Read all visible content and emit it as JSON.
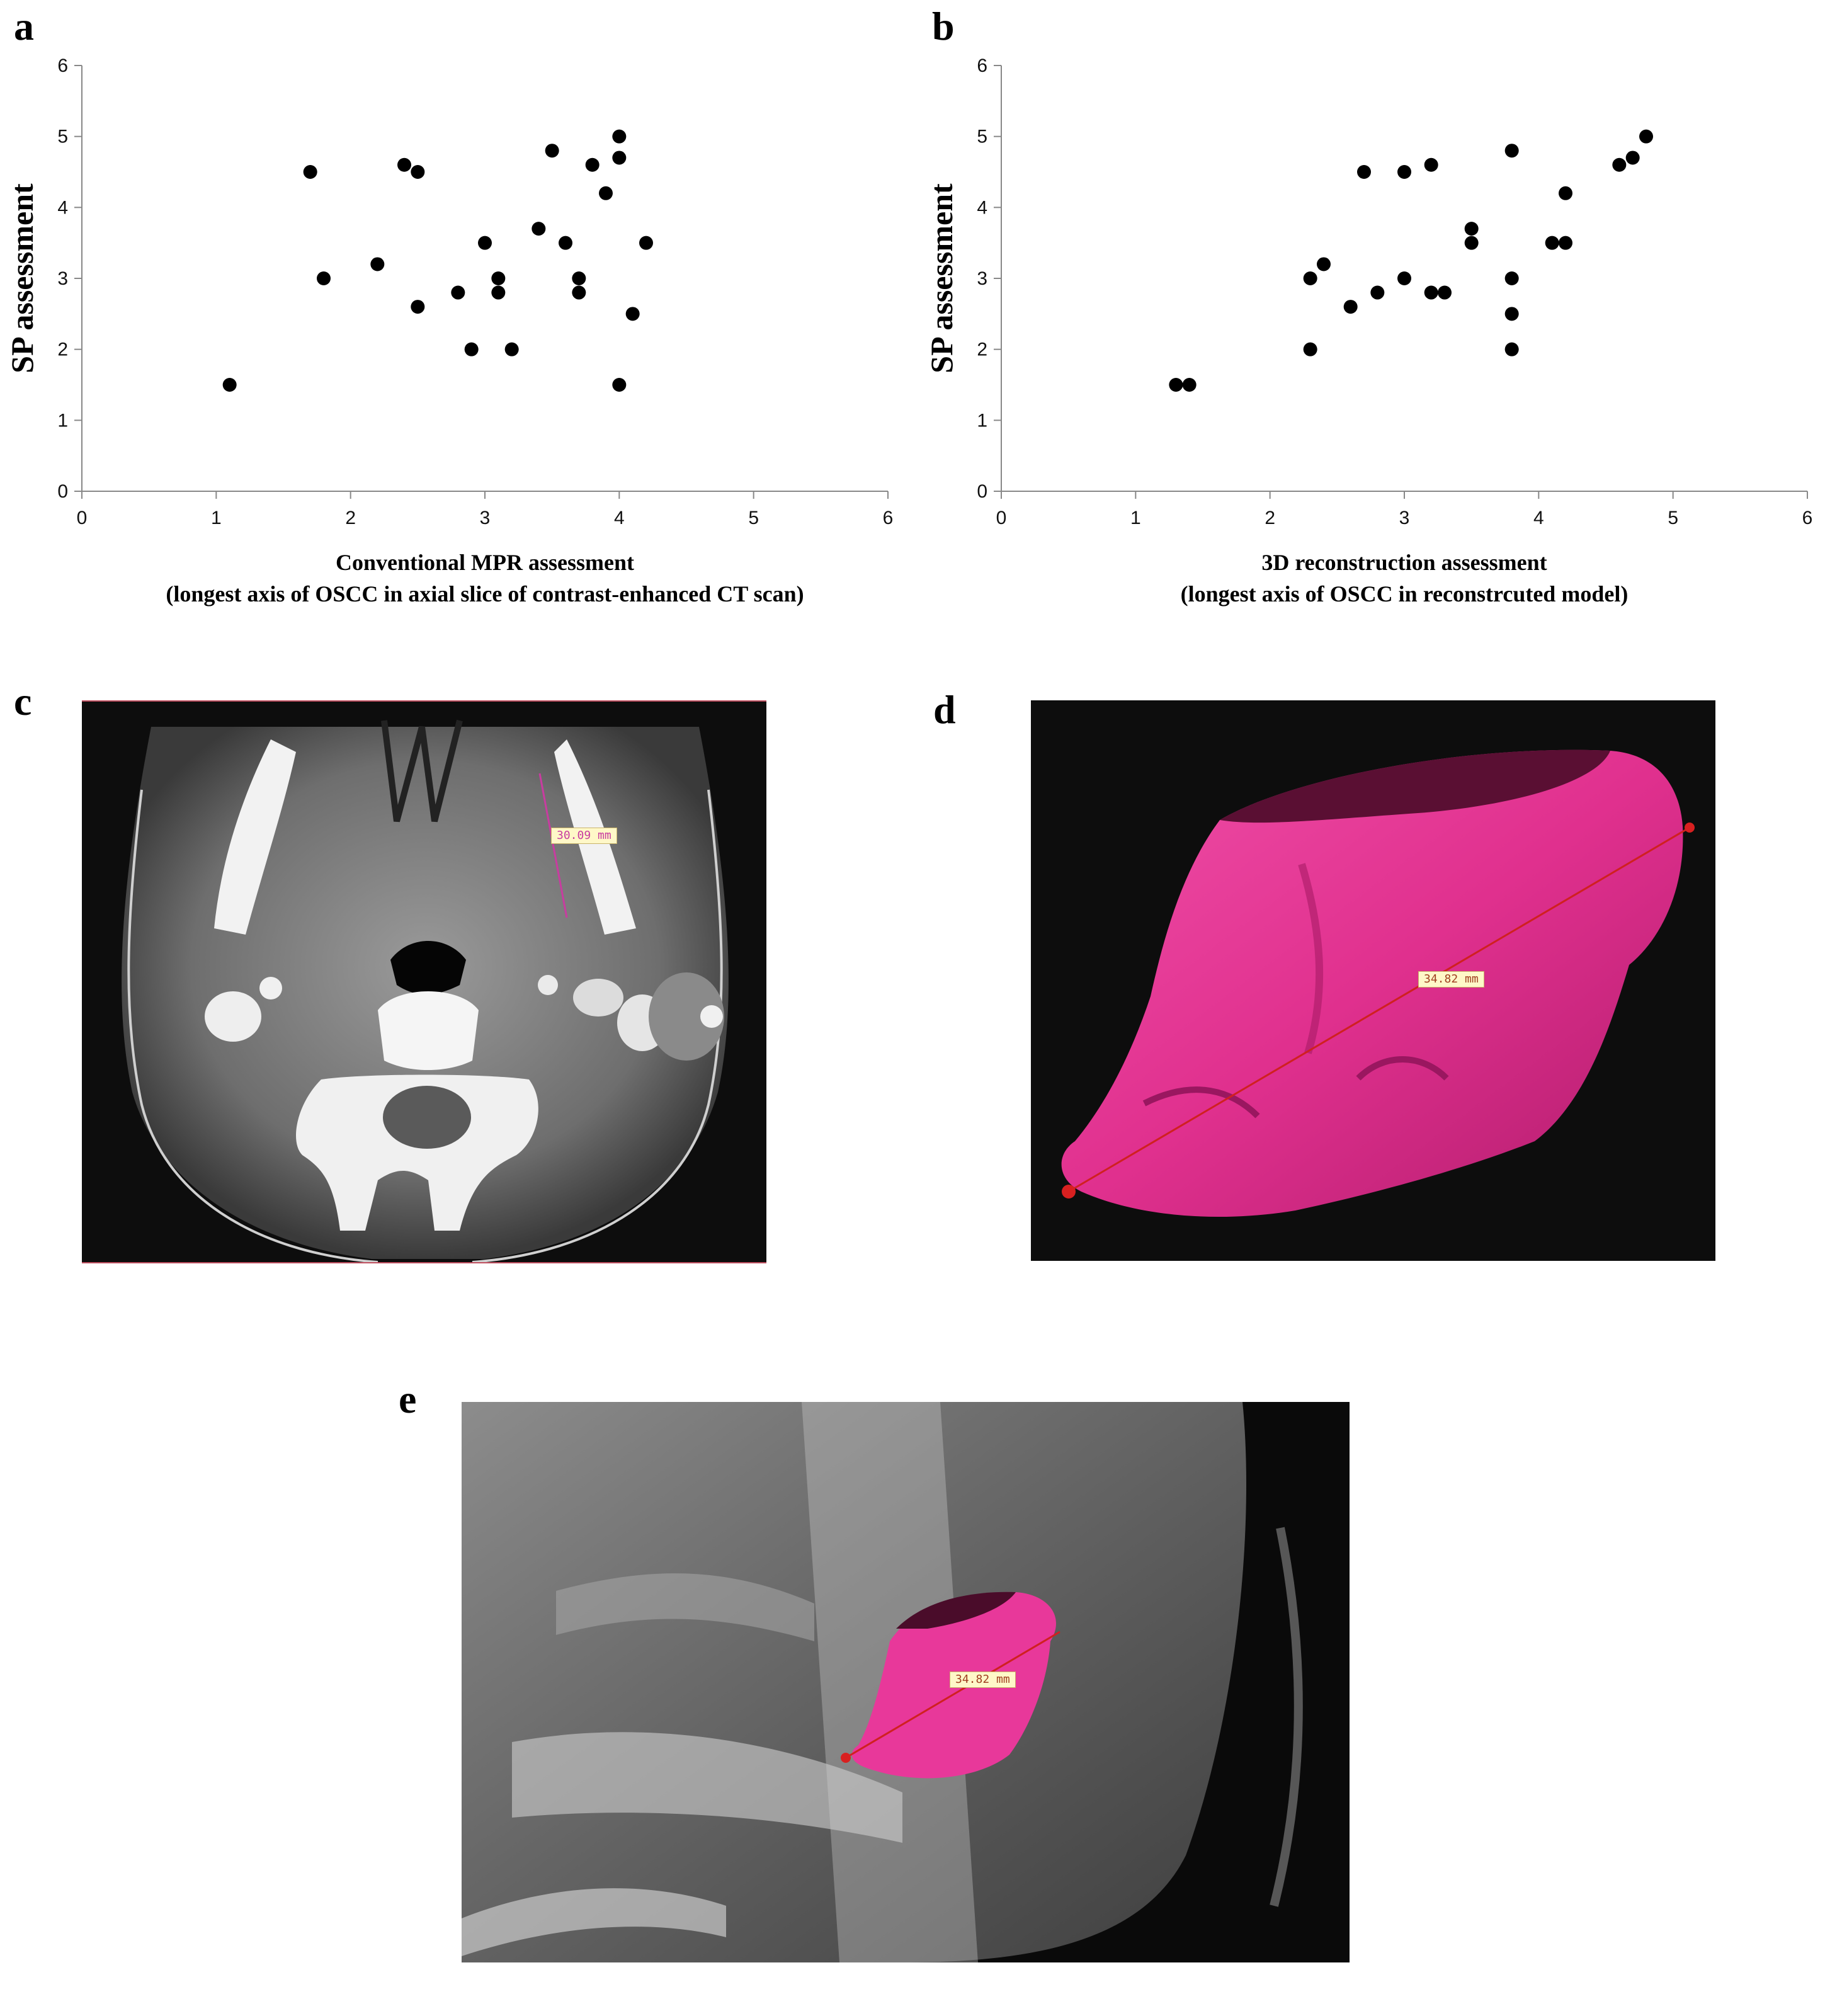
{
  "panels": {
    "a": {
      "letter": "a"
    },
    "b": {
      "letter": "b"
    },
    "c": {
      "letter": "c",
      "measurement": "30.09 mm",
      "measure_color": "#c83ca0"
    },
    "d": {
      "letter": "d",
      "measurement": "34.82 mm",
      "model_color": "#e8389a"
    },
    "e": {
      "letter": "e",
      "measurement": "34.82 mm",
      "model_color": "#e8389a"
    }
  },
  "chart_data": [
    {
      "type": "scatter",
      "panel": "a",
      "ylabel": "SP assessment",
      "xlabel_line1": "Conventional MPR assessment",
      "xlabel_line2": "(longest axis of OSCC in axial slice of contrast-enhanced CT scan)",
      "xlim": [
        0,
        6
      ],
      "ylim": [
        0,
        6
      ],
      "xticks": [
        0,
        1,
        2,
        3,
        4,
        5,
        6
      ],
      "yticks": [
        0,
        1,
        2,
        3,
        4,
        5,
        6
      ],
      "grid": false,
      "marker_color": "#000000",
      "points": [
        [
          1.1,
          1.5
        ],
        [
          1.7,
          4.5
        ],
        [
          1.8,
          3.0
        ],
        [
          2.2,
          3.2
        ],
        [
          2.4,
          4.6
        ],
        [
          2.5,
          4.5
        ],
        [
          2.5,
          2.6
        ],
        [
          2.8,
          2.8
        ],
        [
          2.9,
          2.0
        ],
        [
          3.0,
          3.5
        ],
        [
          3.1,
          3.0
        ],
        [
          3.1,
          2.8
        ],
        [
          3.2,
          2.0
        ],
        [
          3.4,
          3.7
        ],
        [
          3.5,
          4.8
        ],
        [
          3.6,
          3.5
        ],
        [
          3.7,
          3.0
        ],
        [
          3.7,
          2.8
        ],
        [
          3.8,
          4.6
        ],
        [
          3.9,
          4.2
        ],
        [
          4.0,
          5.0
        ],
        [
          4.0,
          4.7
        ],
        [
          4.0,
          1.5
        ],
        [
          4.1,
          2.5
        ],
        [
          4.2,
          3.5
        ]
      ]
    },
    {
      "type": "scatter",
      "panel": "b",
      "ylabel": "SP assessment",
      "xlabel_line1": "3D reconstruction assessment",
      "xlabel_line2": "(longest axis of OSCC in reconstrcuted model)",
      "xlim": [
        0,
        6
      ],
      "ylim": [
        0,
        6
      ],
      "xticks": [
        0,
        1,
        2,
        3,
        4,
        5,
        6
      ],
      "yticks": [
        0,
        1,
        2,
        3,
        4,
        5,
        6
      ],
      "grid": false,
      "marker_color": "#000000",
      "points": [
        [
          1.3,
          1.5
        ],
        [
          1.4,
          1.5
        ],
        [
          2.3,
          3.0
        ],
        [
          2.3,
          2.0
        ],
        [
          2.4,
          3.2
        ],
        [
          2.6,
          2.6
        ],
        [
          2.7,
          4.5
        ],
        [
          2.8,
          2.8
        ],
        [
          3.0,
          4.5
        ],
        [
          3.0,
          3.0
        ],
        [
          3.2,
          4.6
        ],
        [
          3.2,
          2.8
        ],
        [
          3.3,
          2.8
        ],
        [
          3.5,
          3.7
        ],
        [
          3.5,
          3.5
        ],
        [
          3.8,
          4.8
        ],
        [
          3.8,
          3.0
        ],
        [
          3.8,
          2.5
        ],
        [
          3.8,
          2.0
        ],
        [
          4.1,
          3.5
        ],
        [
          4.2,
          4.2
        ],
        [
          4.2,
          3.5
        ],
        [
          4.6,
          4.6
        ],
        [
          4.7,
          4.7
        ],
        [
          4.8,
          5.0
        ]
      ]
    }
  ]
}
